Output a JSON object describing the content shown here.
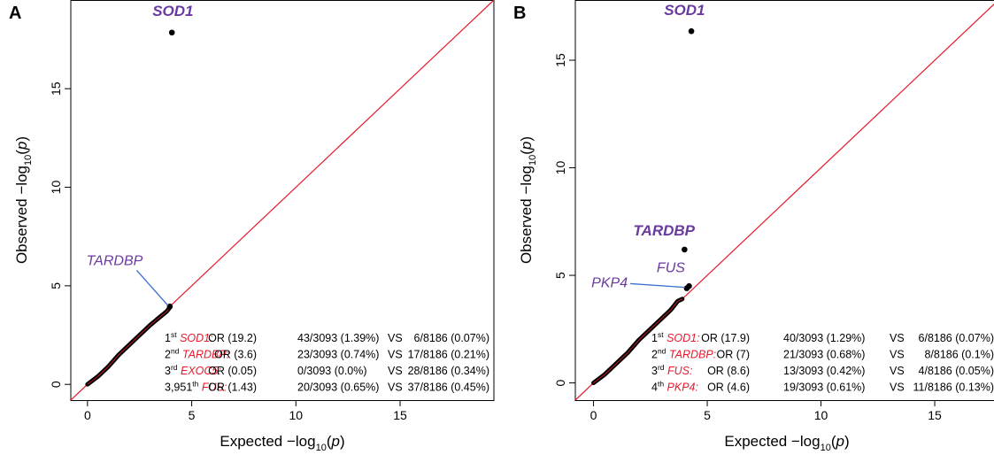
{
  "chart_data": [
    {
      "panel": "A",
      "type": "scatter",
      "xlabel": "Expected",
      "ylabel": "Observed",
      "axis_expr": "−log",
      "axis_sub": "10",
      "axis_var": "p",
      "xlim": [
        -0.8,
        19.5
      ],
      "ylim": [
        -0.8,
        19.5
      ],
      "xticks": [
        0,
        5,
        10,
        15
      ],
      "yticks": [
        0,
        5,
        10,
        15
      ],
      "diagonal_color": "#e8192c",
      "point_color": "#000000",
      "bulk_points": [
        [
          0,
          0
        ],
        [
          0.5,
          0.4
        ],
        [
          1,
          0.9
        ],
        [
          1.5,
          1.5
        ],
        [
          2,
          2
        ],
        [
          2.5,
          2.5
        ],
        [
          3,
          3
        ],
        [
          3.4,
          3.35
        ],
        [
          3.8,
          3.7
        ],
        [
          3.95,
          3.9
        ]
      ],
      "points": [
        {
          "label": "SOD1",
          "x": 4.05,
          "y": 17.85,
          "label_x": 4.1,
          "label_y": 18.7,
          "label_style": "bold"
        },
        {
          "label": "TARDBP",
          "x": 3.95,
          "y": 3.95,
          "label_x": 1.3,
          "label_y": 6.05,
          "label_style": "normal",
          "leader": true
        }
      ],
      "stats": [
        {
          "rank": "1",
          "suffix": "st",
          "gene": "SOD1:",
          "or": "OR (19.2)",
          "case": "43/3093 (1.39%)",
          "vs": "VS",
          "ctrl": "6/8186 (0.07%)"
        },
        {
          "rank": "2",
          "suffix": "nd",
          "gene": "TARDBP:",
          "or": "OR (3.6)",
          "case": "23/3093 (0.74%)",
          "vs": "VS",
          "ctrl": "17/8186 (0.21%)"
        },
        {
          "rank": "3",
          "suffix": "rd",
          "gene": "EXOC5:",
          "or": "OR (0.05)",
          "case": "0/3093 (0.0%)",
          "vs": "VS",
          "ctrl": "28/8186 (0.34%)"
        },
        {
          "rank": "3,951",
          "suffix": "th",
          "gene": "FUS:",
          "or": "OR (1.43)",
          "case": "20/3093 (0.65%)",
          "vs": "VS",
          "ctrl": "37/8186 (0.45%)"
        }
      ]
    },
    {
      "panel": "B",
      "type": "scatter",
      "xlabel": "Expected",
      "ylabel": "Observed",
      "axis_expr": "−log",
      "axis_sub": "10",
      "axis_var": "p",
      "xlim": [
        -0.8,
        17.8
      ],
      "ylim": [
        -0.8,
        17.8
      ],
      "xticks": [
        0,
        5,
        10,
        15
      ],
      "yticks": [
        0,
        5,
        10,
        15
      ],
      "diagonal_color": "#e8192c",
      "point_color": "#000000",
      "bulk_points": [
        [
          0,
          0
        ],
        [
          0.5,
          0.4
        ],
        [
          1,
          0.9
        ],
        [
          1.5,
          1.4
        ],
        [
          2,
          2
        ],
        [
          2.5,
          2.5
        ],
        [
          3,
          3
        ],
        [
          3.4,
          3.4
        ],
        [
          3.7,
          3.8
        ],
        [
          3.9,
          3.9
        ]
      ],
      "points": [
        {
          "label": "SOD1",
          "x": 4.3,
          "y": 16.35,
          "label_x": 4.0,
          "label_y": 17.1,
          "label_style": "bold"
        },
        {
          "label": "TARDBP",
          "x": 4.0,
          "y": 6.2,
          "label_x": 3.1,
          "label_y": 6.85,
          "label_style": "bold"
        },
        {
          "label": "FUS",
          "x": 4.2,
          "y": 4.5,
          "label_x": 3.4,
          "label_y": 5.15,
          "label_style": "normal"
        },
        {
          "label": "PKP4",
          "x": 4.1,
          "y": 4.4,
          "label_x": 1.5,
          "label_y": 4.45,
          "label_style": "normal",
          "leader": true
        }
      ],
      "stats": [
        {
          "rank": "1",
          "suffix": "st",
          "gene": "SOD1:",
          "or": "OR (17.9)",
          "case": "40/3093 (1.29%)",
          "vs": "VS",
          "ctrl": "6/8186 (0.07%)"
        },
        {
          "rank": "2",
          "suffix": "nd",
          "gene": "TARDBP:",
          "or": "OR (7)",
          "case": "21/3093 (0.68%)",
          "vs": "VS",
          "ctrl": "8/8186 (0.1%)"
        },
        {
          "rank": "3",
          "suffix": "rd",
          "gene": "FUS:",
          "or": "OR (8.6)",
          "case": "13/3093 (0.42%)",
          "vs": "VS",
          "ctrl": "4/8186 (0.05%)"
        },
        {
          "rank": "4",
          "suffix": "th",
          "gene": "PKP4:",
          "or": "OR (4.6)",
          "case": "19/3093 (0.61%)",
          "vs": "VS",
          "ctrl": "11/8186 (0.13%)"
        }
      ]
    }
  ]
}
